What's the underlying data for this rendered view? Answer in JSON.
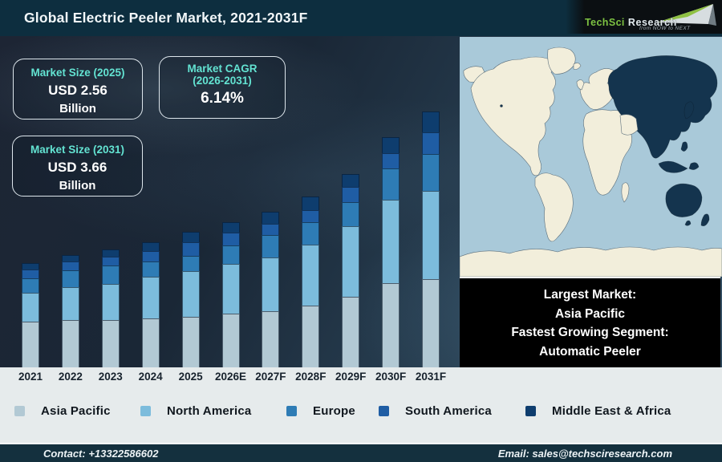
{
  "header": {
    "title": "Global Electric Peeler Market, 2021-2031F",
    "logo": {
      "brand_primary": "TechSci",
      "brand_secondary": "Research",
      "tagline": "from NOW to NEXT",
      "green": "#7dc242",
      "silver": "#d9dfe2"
    }
  },
  "info_boxes": [
    {
      "label": "Market Size (2025)",
      "value": "USD 2.56",
      "unit": "Billion"
    },
    {
      "label": "Market CAGR",
      "label_line2": "(2026-2031)",
      "value": "6.14%"
    },
    {
      "label": "Market Size (2031)",
      "value": "USD 3.66",
      "unit": "Billion"
    }
  ],
  "chart_data": {
    "type": "bar",
    "stacked": true,
    "title": "Global Electric Peeler Market, 2021-2031F",
    "categories": [
      "2021",
      "2022",
      "2023",
      "2024",
      "2025",
      "2026E",
      "2027F",
      "2028F",
      "2029F",
      "2030F",
      "2031F"
    ],
    "series": [
      {
        "name": "Asia Pacific",
        "color": "#b2c9d4",
        "values": [
          57,
          59,
          59,
          61,
          63,
          67,
          70,
          77,
          88,
          105,
          110
        ]
      },
      {
        "name": "North America",
        "color": "#7cbcdc",
        "values": [
          36,
          41,
          45,
          52,
          57,
          62,
          67,
          76,
          88,
          104,
          110
        ]
      },
      {
        "name": "Europe",
        "color": "#2e7cb5",
        "values": [
          18,
          21,
          23,
          19,
          19,
          23,
          28,
          28,
          30,
          39,
          46
        ]
      },
      {
        "name": "South America",
        "color": "#1f5da4",
        "values": [
          11,
          11,
          11,
          13,
          17,
          16,
          14,
          15,
          19,
          19,
          27
        ]
      },
      {
        "name": "Middle East & Africa",
        "color": "#0e3d6e",
        "values": [
          8,
          8,
          9,
          11,
          13,
          13,
          15,
          17,
          16,
          20,
          26
        ]
      }
    ],
    "units": "relative bar-height units (no value axis shown in figure)",
    "value_axis": "hidden",
    "grid": "off",
    "legend_position": "bottom"
  },
  "map": {
    "highlight_region": "Asia Pacific",
    "colors": {
      "ocean": "#a9c9d9",
      "land": "#f2eedb",
      "highlight": "#14344e",
      "outline": "#5c6f7c"
    }
  },
  "callout": {
    "lines": [
      "Largest Market:",
      "Asia Pacific",
      "Fastest Growing Segment:",
      "Automatic Peeler"
    ]
  },
  "footer": {
    "contact": "Contact: +13322586602",
    "email": "Email: sales@techsciresearch.com"
  }
}
